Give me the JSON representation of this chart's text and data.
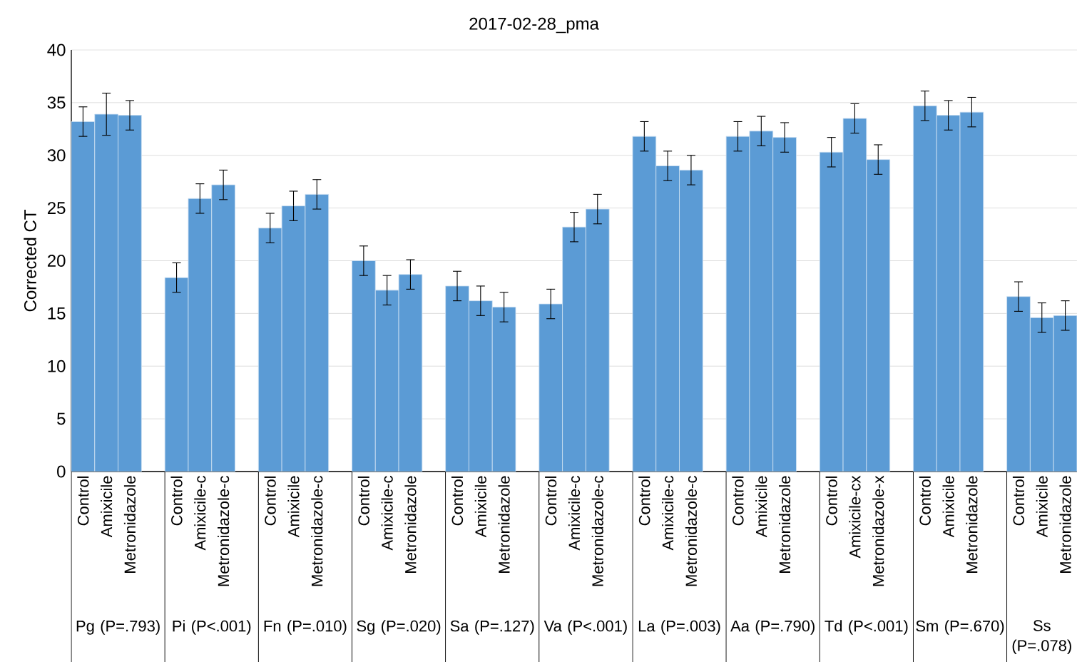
{
  "chart_data": {
    "type": "bar",
    "title": "2017-02-28_pma",
    "ylabel": "Corrected CT",
    "color": "#5b9bd5",
    "grid": "y",
    "ylim": [
      0,
      40
    ],
    "yticks": [
      0,
      5,
      10,
      15,
      20,
      25,
      30,
      35,
      40
    ],
    "categories": [
      "Control",
      "Amixicile",
      "Metronidazole",
      "Control",
      "Amixicile-c",
      "Metronidazole-c",
      "Control",
      "Amixicile",
      "Metronidazole-c",
      "Control",
      "Amixicile-c",
      "Metronidazole",
      "Control",
      "Amixicile",
      "Metronidazole",
      "Control",
      "Amixicile-c",
      "Metronidazole-c",
      "Control",
      "Amixicile-c",
      "Metronidazole-c",
      "Control",
      "Amixicile",
      "Metronidazole",
      "Control",
      "Amixicile-cx",
      "Metronidazole-x",
      "Control",
      "Amixicile",
      "Metronidazole",
      "Control",
      "Amixicile",
      "Metronidazole"
    ],
    "values": [
      33.2,
      33.9,
      33.8,
      18.4,
      25.9,
      27.2,
      23.1,
      25.2,
      26.3,
      20.0,
      17.2,
      18.7,
      17.6,
      16.2,
      15.6,
      15.9,
      23.2,
      24.9,
      31.8,
      29.0,
      28.6,
      31.8,
      32.3,
      31.7,
      30.3,
      33.5,
      29.6,
      34.7,
      33.8,
      34.1,
      16.6,
      14.6,
      14.8
    ],
    "errors": [
      1.4,
      2.0,
      1.4,
      1.4,
      1.4,
      1.4,
      1.4,
      1.4,
      1.4,
      1.4,
      1.4,
      1.4,
      1.4,
      1.4,
      1.4,
      1.4,
      1.4,
      1.4,
      1.4,
      1.4,
      1.4,
      1.4,
      1.4,
      1.4,
      1.4,
      1.4,
      1.4,
      1.4,
      1.4,
      1.4,
      1.4,
      1.4,
      1.4
    ],
    "annotations": [
      "Pg (P=.793)",
      "Pi (P<.001)",
      "Fn (P=.010)",
      "Sg (P=.020)",
      "Sa (P=.127)",
      "Va (P<.001)",
      "La (P=.003)",
      "Aa (P=.790)",
      "Td (P<.001)",
      "Sm (P=.670)",
      "Ss (P=.078)"
    ]
  }
}
